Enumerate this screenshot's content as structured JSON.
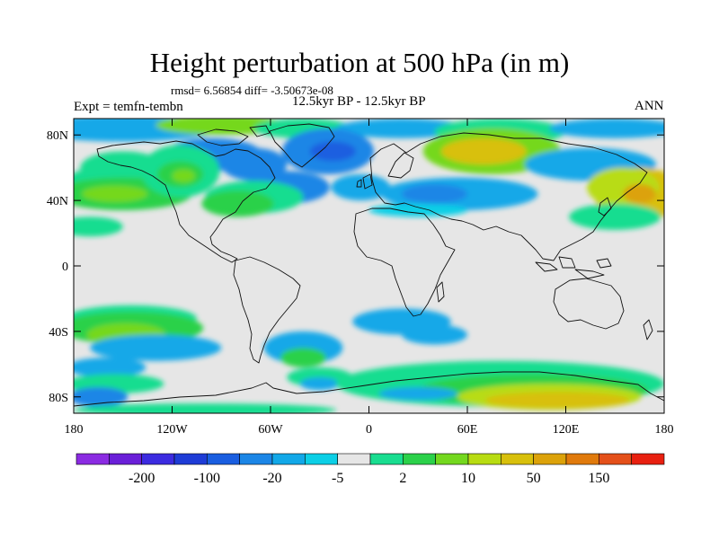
{
  "title": "Height perturbation at 500 hPa (in m)",
  "stats": "rmsd= 6.56854 diff= -3.50673e-08",
  "expt": "Expt = temfn-tembn",
  "period": "12.5kyr BP - 12.5kyr BP",
  "season": "ANN",
  "lat_ticks": [
    "80N",
    "40N",
    "0",
    "40S",
    "80S"
  ],
  "lon_ticks": [
    "180",
    "120W",
    "60W",
    "0",
    "60E",
    "120E",
    "180"
  ],
  "colorbar": {
    "labels": [
      "-200",
      "-100",
      "-20",
      "-5",
      "2",
      "10",
      "50",
      "150"
    ],
    "colors": [
      "#8b2be2",
      "#6a1fd8",
      "#3c2be0",
      "#1e3cd6",
      "#1a5ee0",
      "#1c86e6",
      "#12a8e8",
      "#0ccfe6",
      "#e6e6e6",
      "#19dd90",
      "#2bd14a",
      "#74d81e",
      "#b8dc12",
      "#d8c00c",
      "#dca20a",
      "#e07a0c",
      "#e4501a",
      "#e82010"
    ]
  },
  "map_colors": {
    "neutral": "#e6e6e6",
    "lightblue": "#12a8e8",
    "blue": "#1c86e6",
    "darkblue": "#1a5ee0",
    "cyan": "#0ccfe6",
    "teal": "#19dd90",
    "green": "#2bd14a",
    "lime": "#74d81e",
    "yellowgreen": "#b8dc12",
    "gold": "#d8c00c",
    "orange": "#dca20a"
  }
}
